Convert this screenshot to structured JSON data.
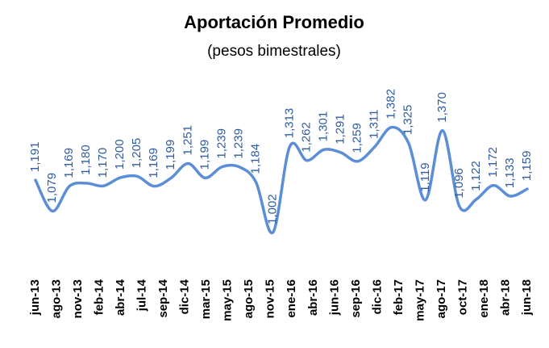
{
  "chart_data": {
    "type": "line",
    "title": "Aportación Promedio",
    "subtitle": "(pesos bimestrales)",
    "xtick_labels": [
      "jun-13",
      "ago-13",
      "nov-13",
      "feb-14",
      "abr-14",
      "jul-14",
      "sep-14",
      "dic-14",
      "mar-15",
      "may-15",
      "ago-15",
      "nov-15",
      "ene-16",
      "abr-16",
      "jun-16",
      "sep-16",
      "dic-16",
      "feb-17",
      "may-17",
      "ago-17",
      "oct-17",
      "ene-18",
      "abr-18",
      "jun-18"
    ],
    "values": [
      1191,
      1079,
      1169,
      1180,
      1170,
      1200,
      1205,
      1169,
      1199,
      1251,
      1199,
      1239,
      1239,
      1184,
      1002,
      1313,
      1262,
      1301,
      1291,
      1259,
      1311,
      1382,
      1325,
      1119,
      1370,
      1096,
      1122,
      1172,
      1133,
      1159
    ],
    "value_labels": [
      "1,191",
      "1,079",
      "1,169",
      "1,180",
      "1,170",
      "1,200",
      "1,205",
      "1,169",
      "1,199",
      "1,251",
      "1,199",
      "1,239",
      "1,239",
      "1,184",
      "1,002",
      "1,313",
      "1,262",
      "1,301",
      "1,291",
      "1,259",
      "1,311",
      "1,382",
      "1,325",
      "1,119",
      "1,370",
      "1,096",
      "1,122",
      "1,172",
      "1,133",
      "1,159"
    ],
    "color": "#5b8ed6",
    "ylim": [
      850,
      1550
    ]
  }
}
